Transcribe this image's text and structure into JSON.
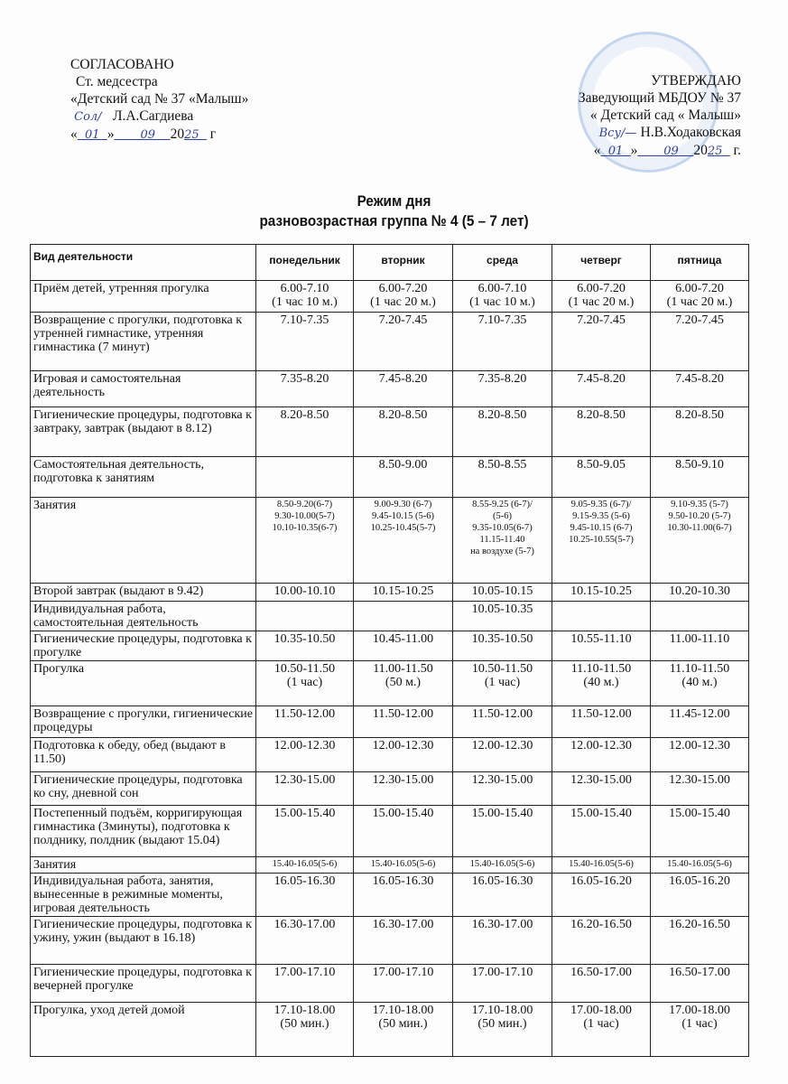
{
  "approval_left": {
    "heading": "СОГЛАСОВАНО",
    "line1": "Ст. медсестра",
    "line2": "«Детский сад № 37 «Малыш»",
    "signer": "Л.А.Сагдиева",
    "day": "01",
    "month": "09",
    "year_prefix": "20",
    "year": "25",
    "suffix": "г"
  },
  "approval_right": {
    "heading": "УТВЕРЖДАЮ",
    "line1": "Заведующий МБДОУ № 37",
    "line2": "« Детский сад « Малыш»",
    "signer": "Н.В.Ходаковская",
    "day": "01",
    "month": "09",
    "year_prefix": "20",
    "year": "25",
    "suffix": "г."
  },
  "title": "Режим дня",
  "subtitle": "разновозрастная группа  № 4 (5 – 7 лет)",
  "table": {
    "headers": [
      "Вид деятельности",
      "понедельник",
      "вторник",
      "среда",
      "четверг",
      "пятница"
    ],
    "rows": [
      {
        "activity": "Приём детей, утренняя прогулка",
        "cells": [
          "6.00-7.10\n(1 час 10 м.)",
          "6.00-7.20\n(1 час 20 м.)",
          "6.00-7.10\n(1 час 10 м.)",
          "6.00-7.20\n(1 час 20 м.)",
          "6.00-7.20\n(1 час 20 м.)"
        ]
      },
      {
        "activity": "Возвращение с прогулки, подготовка к утренней гимнастике, утренняя гимнастика (7 минут)",
        "cells": [
          "7.10-7.35",
          "7.20-7.45",
          "7.10-7.35",
          "7.20-7.45",
          "7.20-7.45"
        ]
      },
      {
        "activity": "Игровая и самостоятельная деятельность",
        "cells": [
          "7.35-8.20",
          "7.45-8.20",
          "7.35-8.20",
          "7.45-8.20",
          "7.45-8.20"
        ]
      },
      {
        "activity": "Гигиенические процедуры, подготовка к завтраку, завтрак (выдают в 8.12)",
        "cells": [
          "8.20-8.50",
          "8.20-8.50",
          "8.20-8.50",
          "8.20-8.50",
          "8.20-8.50"
        ]
      },
      {
        "activity": "Самостоятельная деятельность, подготовка к занятиям",
        "cells": [
          "",
          "8.50-9.00",
          "8.50-8.55",
          "8.50-9.05",
          "8.50-9.10"
        ]
      },
      {
        "activity": "Занятия",
        "small": true,
        "cells": [
          "8.50-9.20(6-7)\n9.30-10.00(5-7)\n10.10-10.35(6-7)",
          "9.00-9.30 (6-7)\n9.45-10.15 (5-6)\n10.25-10.45(5-7)",
          "8.55-9.25 (6-7)/\n(5-6)\n9.35-10.05(6-7)\n11.15-11.40\nна воздухе (5-7)",
          "9.05-9.35 (6-7)/\n9.15-9.35 (5-6)\n9.45-10.15 (6-7)\n10.25-10.55(5-7)",
          "9.10-9.35 (5-7)\n9.50-10.20 (5-7)\n10.30-11.00(6-7)"
        ]
      },
      {
        "activity": "Второй завтрак (выдают в 9.42)",
        "cells": [
          "10.00-10.10",
          "10.15-10.25",
          "10.05-10.15",
          "10.15-10.25",
          "10.20-10.30"
        ]
      },
      {
        "activity": "Индивидуальная работа, самостоятельная деятельность",
        "cells": [
          "",
          "",
          "10.05-10.35",
          "",
          ""
        ]
      },
      {
        "activity": "Гигиенические процедуры, подготовка к прогулке",
        "cells": [
          "10.35-10.50",
          "10.45-11.00",
          "10.35-10.50",
          "10.55-11.10",
          "11.00-11.10"
        ]
      },
      {
        "activity": "Прогулка",
        "cells": [
          "10.50-11.50\n(1 час)",
          "11.00-11.50\n(50 м.)",
          "10.50-11.50\n(1 час)",
          "11.10-11.50\n(40 м.)",
          "11.10-11.50\n(40 м.)"
        ]
      },
      {
        "activity": "Возвращение с прогулки, гигиенические процедуры",
        "cells": [
          "11.50-12.00",
          "11.50-12.00",
          "11.50-12.00",
          "11.50-12.00",
          "11.45-12.00"
        ]
      },
      {
        "activity": "Подготовка к обеду, обед (выдают в 11.50)",
        "cells": [
          "12.00-12.30",
          "12.00-12.30",
          "12.00-12.30",
          "12.00-12.30",
          "12.00-12.30"
        ]
      },
      {
        "activity": "Гигиенические процедуры, подготовка ко сну, дневной сон",
        "cells": [
          "12.30-15.00",
          "12.30-15.00",
          "12.30-15.00",
          "12.30-15.00",
          "12.30-15.00"
        ]
      },
      {
        "activity": "Постепенный подъём, корригирующая гимнастика (3минуты), подготовка к полднику, полдник (выдают 15.04)",
        "cells": [
          "15.00-15.40",
          "15.00-15.40",
          "15.00-15.40",
          "15.00-15.40",
          "15.00-15.40"
        ]
      },
      {
        "activity": "Занятия",
        "small": true,
        "cells": [
          "15.40-16.05(5-6)",
          "15.40-16.05(5-6)",
          "15.40-16.05(5-6)",
          "15.40-16.05(5-6)",
          "15.40-16.05(5-6)"
        ]
      },
      {
        "activity": "Индивидуальная работа, занятия, вынесенные в режимные моменты, игровая деятельность",
        "cells": [
          "16.05-16.30",
          "16.05-16.30",
          "16.05-16.30",
          "16.05-16.20",
          "16.05-16.20"
        ]
      },
      {
        "activity": "Гигиенические процедуры, подготовка к ужину, ужин (выдают в 16.18)",
        "cells": [
          "16.30-17.00",
          "16.30-17.00",
          "16.30-17.00",
          "16.20-16.50",
          "16.20-16.50"
        ]
      },
      {
        "activity": "Гигиенические процедуры, подготовка к вечерней прогулке",
        "cells": [
          "17.00-17.10",
          "17.00-17.10",
          "17.00-17.10",
          "16.50-17.00",
          "16.50-17.00"
        ]
      },
      {
        "activity": "Прогулка, уход детей домой",
        "cells": [
          "17.10-18.00\n(50 мин.)",
          "17.10-18.00\n(50 мин.)",
          "17.10-18.00\n(50 мин.)",
          "17.00-18.00\n(1 час)",
          "17.00-18.00\n(1 час)"
        ]
      }
    ]
  }
}
